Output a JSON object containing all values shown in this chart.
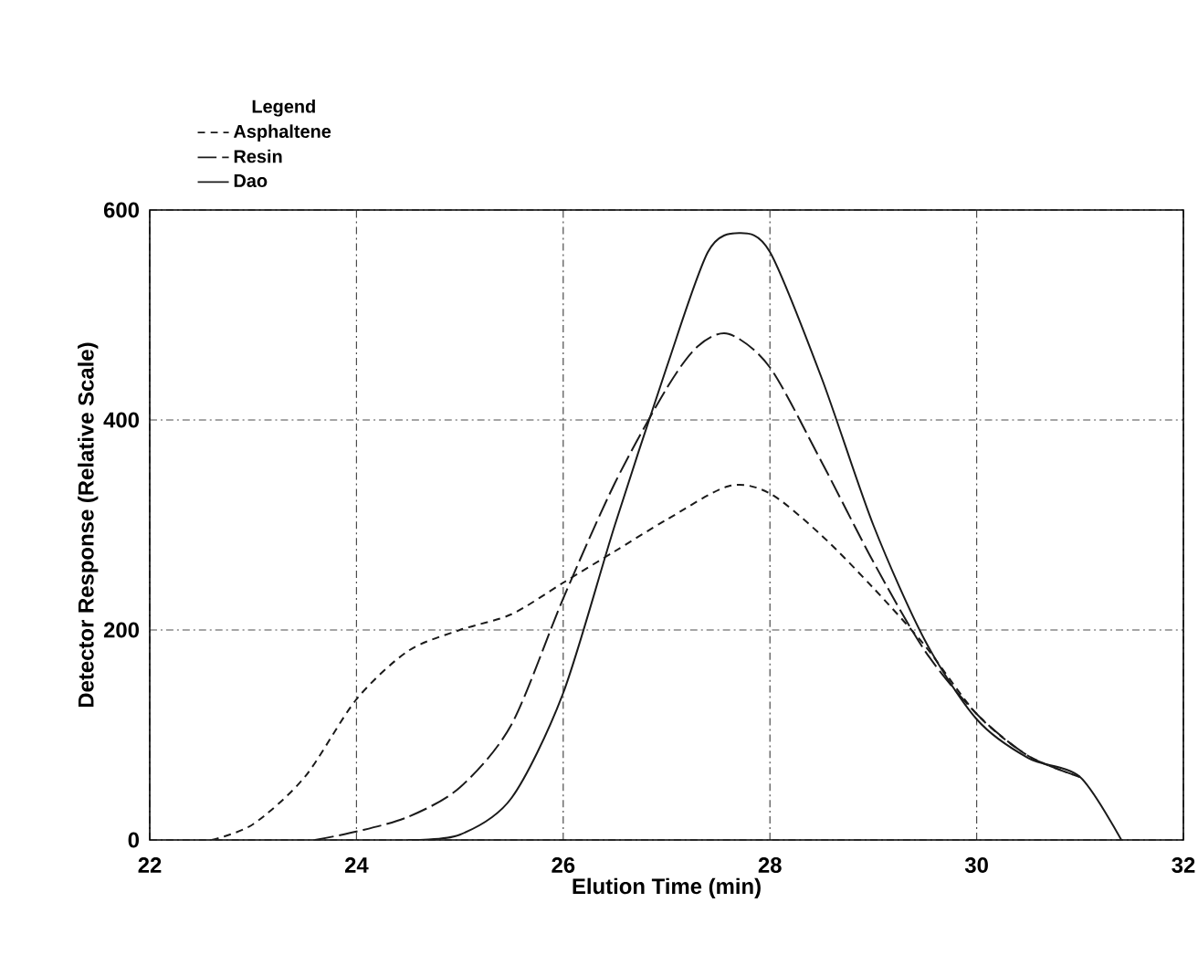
{
  "chart_data": {
    "type": "line",
    "xlabel": "Elution Time (min)",
    "ylabel": "Detector Response (Relative Scale)",
    "legend_title": "Legend",
    "xlim": [
      22,
      32
    ],
    "ylim": [
      0,
      600
    ],
    "xticks": [
      22,
      24,
      26,
      28,
      30,
      32
    ],
    "yticks": [
      0,
      200,
      400,
      600
    ],
    "grid": true,
    "legend": "top left",
    "marker": "none",
    "series": [
      {
        "name": "Asphaltene",
        "color": "#1a1a1a",
        "line_style": "dashed",
        "x": [
          22.6,
          23.0,
          23.5,
          24.0,
          24.5,
          25.0,
          25.5,
          26.0,
          26.5,
          27.0,
          27.6,
          28.0,
          28.5,
          29.0,
          29.5,
          30.0,
          30.5,
          31.0
        ],
        "values": [
          0,
          15,
          60,
          134,
          180,
          200,
          215,
          245,
          275,
          305,
          337,
          330,
          290,
          240,
          185,
          120,
          80,
          60
        ]
      },
      {
        "name": "Resin",
        "color": "#1a1a1a",
        "line_style": "dashed",
        "x": [
          23.6,
          24.0,
          24.5,
          25.0,
          25.5,
          26.0,
          26.5,
          27.0,
          27.3,
          27.6,
          28.0,
          28.5,
          29.0,
          29.5,
          30.0,
          30.5,
          31.0
        ],
        "values": [
          0,
          8,
          22,
          50,
          110,
          230,
          340,
          430,
          470,
          482,
          450,
          360,
          265,
          180,
          120,
          80,
          60
        ]
      },
      {
        "name": "Dao",
        "color": "#1a1a1a",
        "line_style": "solid",
        "x": [
          24.5,
          25.0,
          25.5,
          26.0,
          26.5,
          27.0,
          27.4,
          27.7,
          28.0,
          28.5,
          29.0,
          29.5,
          30.0,
          30.5,
          31.0,
          31.4
        ],
        "values": [
          0,
          5,
          40,
          140,
          300,
          450,
          560,
          578,
          560,
          440,
          300,
          190,
          115,
          78,
          60,
          0
        ]
      }
    ]
  }
}
